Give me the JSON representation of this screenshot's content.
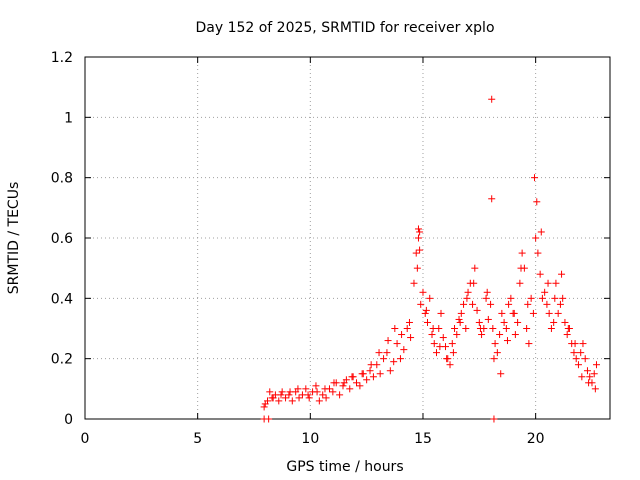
{
  "chart_data": {
    "type": "scatter",
    "title": "Day 152 of 2025, SRMTID for receiver xplo",
    "xlabel": "GPS time / hours",
    "ylabel": "SRMTID / TECUs",
    "xlim": [
      0,
      23.3
    ],
    "ylim": [
      0,
      1.2
    ],
    "xticks": [
      0,
      5,
      10,
      15,
      20
    ],
    "xtick_labels": [
      "0",
      "5",
      "10",
      "15",
      "20"
    ],
    "yticks": [
      0,
      0.2,
      0.4,
      0.6,
      0.8,
      1.0,
      1.2
    ],
    "ytick_labels": [
      "0",
      "0.2",
      "0.4",
      "0.6",
      "0.8",
      "1",
      "1.2"
    ],
    "grid": true,
    "marker": "+",
    "color": "#ff0000",
    "series": [
      {
        "name": "SRMTID",
        "x": [
          7.95,
          8.1,
          8.2,
          8.3,
          8.45,
          8.6,
          8.75,
          8.9,
          9.05,
          9.2,
          9.35,
          9.5,
          9.65,
          9.8,
          9.95,
          10.1,
          10.25,
          10.4,
          10.55,
          10.7,
          10.85,
          11.0,
          11.15,
          11.3,
          11.45,
          11.6,
          11.75,
          11.9,
          12.05,
          12.2,
          12.35,
          12.5,
          12.65,
          12.8,
          12.95,
          13.1,
          13.25,
          13.4,
          13.55,
          13.7,
          13.85,
          14.0,
          14.15,
          14.3,
          14.45,
          14.6,
          14.7,
          14.8,
          14.9,
          15.0,
          15.1,
          15.2,
          15.3,
          15.4,
          15.5,
          15.6,
          15.7,
          15.8,
          15.9,
          16.0,
          16.1,
          16.2,
          16.3,
          16.4,
          16.5,
          16.6,
          16.7,
          16.8,
          16.9,
          17.0,
          17.1,
          17.2,
          17.3,
          17.4,
          17.5,
          17.6,
          17.7,
          17.8,
          17.9,
          18.0,
          18.1,
          18.2,
          18.3,
          18.4,
          18.5,
          18.6,
          18.7,
          18.8,
          18.9,
          19.0,
          19.1,
          19.2,
          19.3,
          19.4,
          19.5,
          19.6,
          19.7,
          19.8,
          19.9,
          20.0,
          20.1,
          20.2,
          20.3,
          20.4,
          20.5,
          20.6,
          20.7,
          20.8,
          20.9,
          21.0,
          21.1,
          21.2,
          21.3,
          21.4,
          21.5,
          21.6,
          21.7,
          21.8,
          21.9,
          22.0,
          22.1,
          22.2,
          22.3,
          22.4,
          22.5,
          22.6,
          22.7,
          8.0,
          8.35,
          8.7,
          9.1,
          9.45,
          9.9,
          10.3,
          10.65,
          11.05,
          11.5,
          11.85,
          12.3,
          12.7,
          13.05,
          13.45,
          13.75,
          14.05,
          14.4,
          14.75,
          14.85,
          15.15,
          15.45,
          15.75,
          16.05,
          16.35,
          16.65,
          16.95,
          17.25,
          17.55,
          17.85,
          18.15,
          18.45,
          18.75,
          19.05,
          19.35,
          19.65,
          19.95,
          20.05,
          20.25,
          20.55,
          20.85,
          21.15,
          21.45,
          21.75,
          22.05,
          22.35,
          22.65,
          14.8,
          14.85,
          18.05,
          18.05,
          18.15,
          7.95,
          8.15
        ],
        "y": [
          0.04,
          0.06,
          0.09,
          0.07,
          0.08,
          0.06,
          0.09,
          0.07,
          0.08,
          0.06,
          0.09,
          0.07,
          0.08,
          0.1,
          0.07,
          0.09,
          0.11,
          0.06,
          0.08,
          0.07,
          0.1,
          0.09,
          0.12,
          0.08,
          0.11,
          0.13,
          0.1,
          0.14,
          0.12,
          0.11,
          0.15,
          0.13,
          0.16,
          0.14,
          0.18,
          0.15,
          0.2,
          0.22,
          0.16,
          0.19,
          0.25,
          0.2,
          0.23,
          0.3,
          0.27,
          0.45,
          0.55,
          0.6,
          0.38,
          0.42,
          0.35,
          0.32,
          0.4,
          0.28,
          0.25,
          0.22,
          0.3,
          0.35,
          0.27,
          0.24,
          0.2,
          0.18,
          0.25,
          0.3,
          0.28,
          0.33,
          0.35,
          0.38,
          0.3,
          0.42,
          0.45,
          0.38,
          0.5,
          0.36,
          0.32,
          0.28,
          0.3,
          0.4,
          0.33,
          0.38,
          0.3,
          0.25,
          0.22,
          0.28,
          0.35,
          0.32,
          0.3,
          0.38,
          0.4,
          0.35,
          0.28,
          0.32,
          0.45,
          0.55,
          0.5,
          0.3,
          0.25,
          0.4,
          0.35,
          0.6,
          0.55,
          0.48,
          0.4,
          0.42,
          0.38,
          0.35,
          0.3,
          0.32,
          0.45,
          0.35,
          0.38,
          0.4,
          0.32,
          0.28,
          0.3,
          0.25,
          0.22,
          0.2,
          0.18,
          0.22,
          0.25,
          0.2,
          0.16,
          0.14,
          0.12,
          0.15,
          0.18,
          0.05,
          0.07,
          0.08,
          0.09,
          0.1,
          0.08,
          0.09,
          0.1,
          0.12,
          0.12,
          0.14,
          0.15,
          0.18,
          0.22,
          0.26,
          0.3,
          0.28,
          0.32,
          0.5,
          0.62,
          0.36,
          0.3,
          0.24,
          0.2,
          0.22,
          0.32,
          0.4,
          0.45,
          0.3,
          0.42,
          0.2,
          0.15,
          0.26,
          0.35,
          0.5,
          0.38,
          0.8,
          0.72,
          0.62,
          0.45,
          0.4,
          0.48,
          0.3,
          0.25,
          0.14,
          0.12,
          0.1,
          0.63,
          0.56,
          1.06,
          0.73,
          0.0,
          0.0,
          0.0
        ]
      }
    ]
  }
}
